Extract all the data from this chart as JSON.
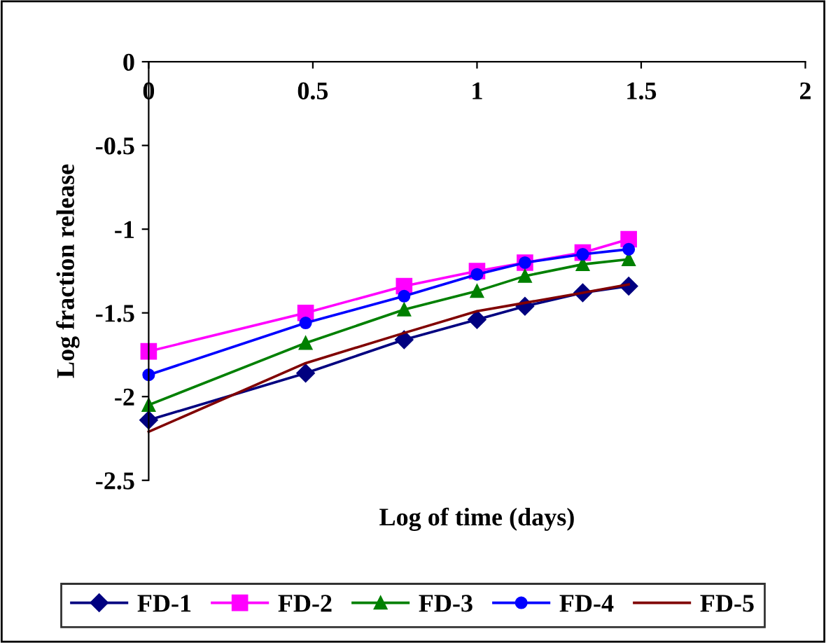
{
  "chart_data": {
    "type": "line",
    "xlabel": "Log of time (days)",
    "ylabel": "Log fraction release",
    "xlim": [
      0,
      2
    ],
    "xticks": [
      0,
      0.5,
      1,
      1.5,
      2
    ],
    "ylim": [
      -2.5,
      0
    ],
    "yticks": [
      0,
      -0.5,
      -1,
      -1.5,
      -2,
      -2.5
    ],
    "x": [
      0,
      0.478,
      0.778,
      1.0,
      1.146,
      1.322,
      1.462
    ],
    "grid": false,
    "legend": "bottom",
    "series": [
      {
        "name": "FD-1",
        "color": "#000080",
        "marker": "diamond",
        "values": [
          -2.14,
          -1.86,
          -1.66,
          -1.54,
          -1.46,
          -1.38,
          -1.34
        ]
      },
      {
        "name": "FD-2",
        "color": "#ff00ff",
        "marker": "square",
        "values": [
          -1.73,
          -1.5,
          -1.34,
          -1.25,
          -1.2,
          -1.14,
          -1.06
        ]
      },
      {
        "name": "FD-3",
        "color": "#008000",
        "marker": "triangle",
        "values": [
          -2.05,
          -1.68,
          -1.48,
          -1.37,
          -1.28,
          -1.21,
          -1.18
        ]
      },
      {
        "name": "FD-4",
        "color": "#0000ff",
        "marker": "circle",
        "values": [
          -1.87,
          -1.56,
          -1.4,
          -1.27,
          -1.2,
          -1.15,
          -1.12
        ]
      },
      {
        "name": "FD-5",
        "color": "#800000",
        "marker": "none",
        "values": [
          -2.21,
          -1.8,
          -1.62,
          -1.49,
          -1.44,
          -1.38,
          -1.33
        ]
      }
    ]
  }
}
